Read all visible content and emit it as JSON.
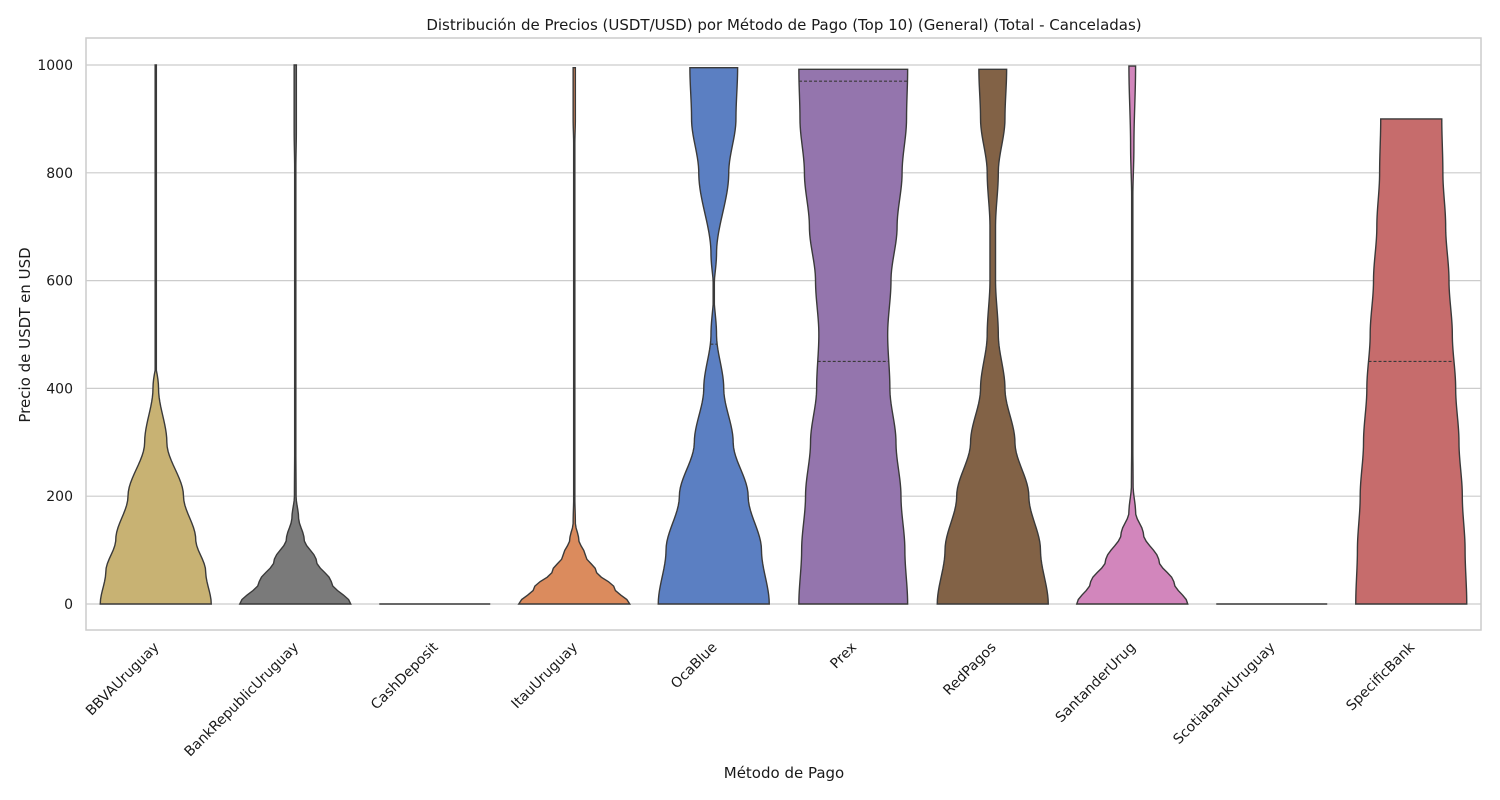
{
  "chart_data": {
    "type": "violin",
    "title": "Distribución de Precios (USDT/USD) por Método de Pago (Top 10) (General) (Total - Canceladas)",
    "xlabel": "Método de Pago",
    "ylabel": "Precio de USDT en USD",
    "ylim": [
      -50,
      1050
    ],
    "yticks": [
      0,
      200,
      400,
      600,
      800,
      1000
    ],
    "grid": true,
    "series": [
      {
        "category": "BBVAUruguay",
        "color": "#c8b273",
        "min": 0,
        "max": 1000,
        "quartiles": [],
        "profile": [
          [
            0,
            1.0
          ],
          [
            60,
            0.9
          ],
          [
            120,
            0.72
          ],
          [
            200,
            0.5
          ],
          [
            300,
            0.2
          ],
          [
            400,
            0.05
          ],
          [
            500,
            -0.1
          ],
          [
            600,
            -0.17
          ],
          [
            700,
            -0.1
          ],
          [
            800,
            0.0
          ],
          [
            900,
            0.0
          ],
          [
            1000,
            0.0
          ]
        ]
      },
      {
        "category": "BankRepublicUruguay",
        "color": "#7a7a7a",
        "min": 0,
        "max": 1000,
        "quartiles": [],
        "profile": [
          [
            0,
            1.0
          ],
          [
            40,
            0.65
          ],
          [
            80,
            0.38
          ],
          [
            120,
            0.16
          ],
          [
            160,
            0.06
          ],
          [
            200,
            0.015
          ],
          [
            300,
            0.01
          ],
          [
            800,
            0.01
          ],
          [
            880,
            0.02
          ],
          [
            1000,
            0.02
          ]
        ]
      },
      {
        "category": "CashDeposit",
        "color": "#9b9b9b",
        "min": 0,
        "max": 0,
        "quartiles": [],
        "profile": []
      },
      {
        "category": "ItauUruguay",
        "color": "#db8b5d",
        "min": 0,
        "max": 995,
        "quartiles": [],
        "profile": [
          [
            0,
            1.0
          ],
          [
            30,
            0.72
          ],
          [
            60,
            0.4
          ],
          [
            90,
            0.2
          ],
          [
            120,
            0.08
          ],
          [
            150,
            0.02
          ],
          [
            200,
            0.01
          ],
          [
            850,
            0.01
          ],
          [
            900,
            0.02
          ],
          [
            995,
            0.02
          ]
        ]
      },
      {
        "category": "OcaBlue",
        "color": "#5b7fc2",
        "min": 0,
        "max": 995,
        "quartiles": [
          482
        ],
        "profile": [
          [
            0,
            1.0
          ],
          [
            100,
            0.86
          ],
          [
            200,
            0.62
          ],
          [
            300,
            0.35
          ],
          [
            400,
            0.18
          ],
          [
            500,
            0.05
          ],
          [
            580,
            0.0
          ],
          [
            650,
            0.05
          ],
          [
            800,
            0.27
          ],
          [
            900,
            0.4
          ],
          [
            995,
            0.43
          ]
        ]
      },
      {
        "category": "Prex",
        "color": "#9475ad",
        "min": 0,
        "max": 992,
        "quartiles": [
          450,
          970
        ],
        "profile": [
          [
            0,
            0.98
          ],
          [
            100,
            0.93
          ],
          [
            200,
            0.86
          ],
          [
            300,
            0.77
          ],
          [
            400,
            0.66
          ],
          [
            500,
            0.62
          ],
          [
            600,
            0.68
          ],
          [
            700,
            0.79
          ],
          [
            800,
            0.88
          ],
          [
            900,
            0.96
          ],
          [
            992,
            0.98
          ]
        ]
      },
      {
        "category": "RedPagos",
        "color": "#826246",
        "min": 0,
        "max": 992,
        "quartiles": [],
        "profile": [
          [
            0,
            1.0
          ],
          [
            100,
            0.86
          ],
          [
            200,
            0.65
          ],
          [
            300,
            0.4
          ],
          [
            400,
            0.22
          ],
          [
            500,
            0.1
          ],
          [
            600,
            0.05
          ],
          [
            700,
            0.05
          ],
          [
            800,
            0.1
          ],
          [
            900,
            0.22
          ],
          [
            992,
            0.25
          ]
        ]
      },
      {
        "category": "SantanderUrug",
        "color": "#d286bc",
        "min": 0,
        "max": 998,
        "quartiles": [],
        "profile": [
          [
            0,
            1.0
          ],
          [
            40,
            0.75
          ],
          [
            80,
            0.48
          ],
          [
            130,
            0.2
          ],
          [
            170,
            0.06
          ],
          [
            220,
            0.015
          ],
          [
            300,
            0.01
          ],
          [
            750,
            0.01
          ],
          [
            850,
            0.03
          ],
          [
            998,
            0.06
          ]
        ]
      },
      {
        "category": "ScotiabankUruguay",
        "color": "#9b9b9b",
        "min": 0,
        "max": 0,
        "quartiles": [],
        "profile": []
      },
      {
        "category": "SpecificBank",
        "color": "#c66c6c",
        "min": 0,
        "max": 900,
        "quartiles": [
          450
        ],
        "profile": [
          [
            0,
            1.0
          ],
          [
            100,
            0.97
          ],
          [
            200,
            0.92
          ],
          [
            300,
            0.86
          ],
          [
            400,
            0.8
          ],
          [
            500,
            0.74
          ],
          [
            600,
            0.68
          ],
          [
            700,
            0.62
          ],
          [
            800,
            0.57
          ],
          [
            900,
            0.55
          ]
        ]
      }
    ]
  }
}
